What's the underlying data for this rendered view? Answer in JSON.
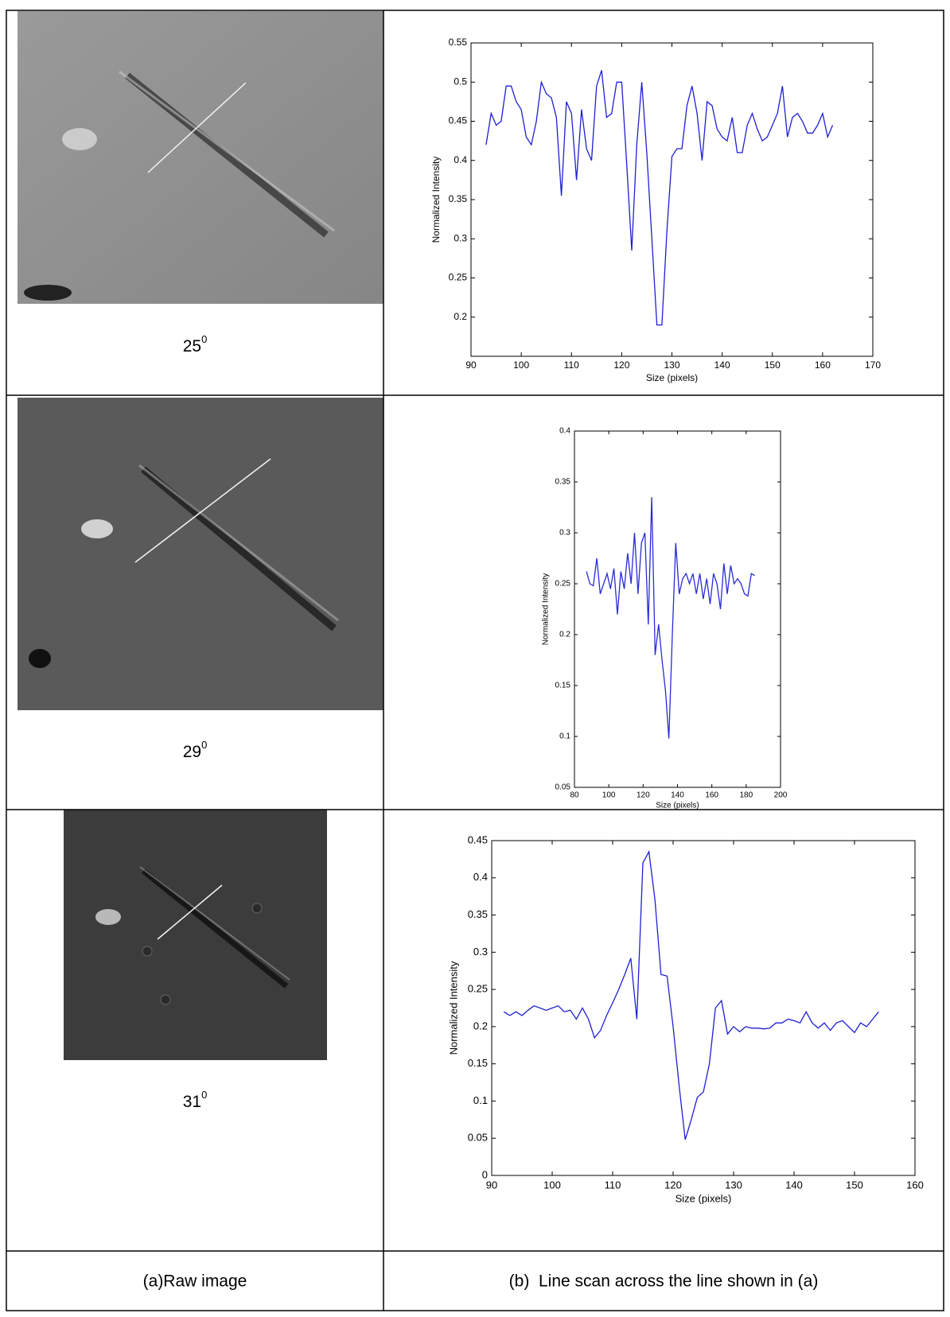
{
  "chart_data": [
    {
      "type": "line",
      "xlabel": "Size (pixels)",
      "ylabel": "Normalized Intensity",
      "color": "#1f1fd6",
      "xlim": [
        90,
        170
      ],
      "xticks": [
        90,
        100,
        110,
        120,
        130,
        140,
        150,
        160,
        170
      ],
      "ylim": [
        0.15,
        0.55
      ],
      "yticks": [
        0.2,
        0.25,
        0.3,
        0.35,
        0.4,
        0.45,
        0.5,
        0.55
      ],
      "x": [
        93,
        94,
        95,
        96,
        97,
        98,
        99,
        100,
        101,
        102,
        103,
        104,
        105,
        106,
        107,
        108,
        109,
        110,
        111,
        112,
        113,
        114,
        115,
        116,
        117,
        118,
        119,
        120,
        121,
        122,
        123,
        124,
        125,
        126,
        127,
        128,
        129,
        130,
        131,
        132,
        133,
        134,
        135,
        136,
        137,
        138,
        139,
        140,
        141,
        142,
        143,
        144,
        145,
        146,
        147,
        148,
        149,
        150,
        151,
        152,
        153,
        154,
        155,
        156,
        157,
        158,
        159,
        160,
        161,
        162
      ],
      "values": [
        0.42,
        0.46,
        0.445,
        0.45,
        0.495,
        0.495,
        0.475,
        0.465,
        0.43,
        0.42,
        0.45,
        0.5,
        0.485,
        0.48,
        0.455,
        0.355,
        0.475,
        0.46,
        0.375,
        0.465,
        0.415,
        0.4,
        0.495,
        0.515,
        0.455,
        0.46,
        0.5,
        0.5,
        0.395,
        0.285,
        0.42,
        0.5,
        0.41,
        0.3,
        0.19,
        0.19,
        0.31,
        0.405,
        0.415,
        0.415,
        0.47,
        0.495,
        0.46,
        0.4,
        0.475,
        0.47,
        0.44,
        0.43,
        0.425,
        0.455,
        0.41,
        0.41,
        0.445,
        0.46,
        0.44,
        0.425,
        0.43,
        0.445,
        0.46,
        0.495,
        0.43,
        0.455,
        0.46,
        0.45,
        0.435,
        0.435,
        0.445,
        0.46,
        0.43,
        0.445
      ]
    },
    {
      "type": "line",
      "xlabel": "Size (pixels)",
      "ylabel": "Normalized Intensity",
      "color": "#2a2ad8",
      "xlim": [
        80,
        200
      ],
      "xticks": [
        80,
        100,
        120,
        140,
        160,
        180,
        200
      ],
      "ylim": [
        0.05,
        0.4
      ],
      "yticks": [
        0.05,
        0.1,
        0.15,
        0.2,
        0.25,
        0.3,
        0.35,
        0.4
      ],
      "x": [
        87,
        89,
        91,
        93,
        95,
        97,
        99,
        101,
        103,
        105,
        107,
        109,
        111,
        113,
        115,
        117,
        119,
        121,
        123,
        125,
        127,
        129,
        131,
        133,
        135,
        137,
        139,
        141,
        143,
        145,
        147,
        149,
        151,
        153,
        155,
        157,
        159,
        161,
        163,
        165,
        167,
        169,
        171,
        173,
        175,
        177,
        179,
        181,
        183,
        185
      ],
      "values": [
        0.262,
        0.25,
        0.248,
        0.275,
        0.24,
        0.25,
        0.26,
        0.245,
        0.265,
        0.22,
        0.262,
        0.245,
        0.28,
        0.25,
        0.3,
        0.24,
        0.29,
        0.3,
        0.21,
        0.335,
        0.18,
        0.21,
        0.175,
        0.145,
        0.098,
        0.2,
        0.29,
        0.24,
        0.255,
        0.26,
        0.25,
        0.26,
        0.24,
        0.26,
        0.235,
        0.255,
        0.23,
        0.26,
        0.25,
        0.225,
        0.27,
        0.24,
        0.268,
        0.25,
        0.255,
        0.25,
        0.24,
        0.238,
        0.26,
        0.258
      ]
    },
    {
      "type": "line",
      "xlabel": "Size (pixels)",
      "ylabel": "Normalized Intensity",
      "color": "#1f1fd6",
      "xlim": [
        90,
        160
      ],
      "xticks": [
        90,
        100,
        110,
        120,
        130,
        140,
        150,
        160
      ],
      "ylim": [
        0,
        0.45
      ],
      "yticks": [
        0,
        0.05,
        0.1,
        0.15,
        0.2,
        0.25,
        0.3,
        0.35,
        0.4,
        0.45
      ],
      "x": [
        92,
        93,
        94,
        95,
        96,
        97,
        98,
        99,
        100,
        101,
        102,
        103,
        104,
        105,
        106,
        107,
        108,
        109,
        110,
        111,
        112,
        113,
        114,
        115,
        116,
        117,
        118,
        119,
        120,
        121,
        122,
        123,
        124,
        125,
        126,
        127,
        128,
        129,
        130,
        131,
        132,
        133,
        134,
        135,
        136,
        137,
        138,
        139,
        140,
        141,
        142,
        143,
        144,
        145,
        146,
        147,
        148,
        149,
        150,
        151,
        152,
        153,
        154
      ],
      "values": [
        0.22,
        0.215,
        0.22,
        0.215,
        0.222,
        0.228,
        0.225,
        0.222,
        0.225,
        0.228,
        0.22,
        0.222,
        0.21,
        0.225,
        0.21,
        0.185,
        0.195,
        0.215,
        0.232,
        0.25,
        0.27,
        0.292,
        0.21,
        0.42,
        0.435,
        0.37,
        0.27,
        0.268,
        0.2,
        0.12,
        0.048,
        0.075,
        0.105,
        0.112,
        0.15,
        0.225,
        0.235,
        0.19,
        0.2,
        0.193,
        0.2,
        0.198,
        0.198,
        0.197,
        0.198,
        0.205,
        0.205,
        0.21,
        0.208,
        0.205,
        0.22,
        0.205,
        0.198,
        0.205,
        0.195,
        0.205,
        0.208,
        0.2,
        0.192,
        0.205,
        0.2,
        0.21,
        0.22
      ]
    }
  ],
  "table": {
    "rows": [
      {
        "angle": {
          "base": "25",
          "sup": "0"
        }
      },
      {
        "angle": {
          "base": "29",
          "sup": "0"
        }
      },
      {
        "angle": {
          "base": "31",
          "sup": "0"
        }
      }
    ],
    "captions": [
      "(a)Raw image",
      "(b)  Line scan across the line shown in (a)"
    ]
  }
}
